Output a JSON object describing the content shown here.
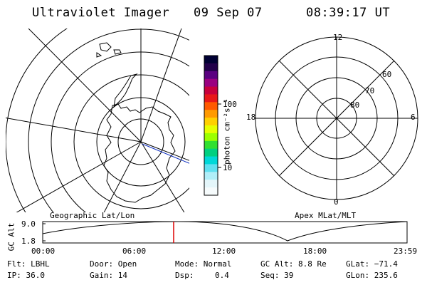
{
  "header": {
    "instrument": "Ultraviolet Imager",
    "date": "09 Sep 07",
    "time": "08:39:17 UT"
  },
  "colorbar": {
    "unit_label": "photon cm⁻²s⁻¹",
    "ticks": [
      "100",
      "10"
    ],
    "colors": [
      "#000033",
      "#22004a",
      "#5a0080",
      "#9a0080",
      "#c8003c",
      "#e81818",
      "#ff5a00",
      "#ff9a00",
      "#ffd000",
      "#e6ff00",
      "#9cff00",
      "#30e030",
      "#00d080",
      "#00d8d8",
      "#60e0f0",
      "#b0eef8",
      "#e4f6fa",
      "#f6fbfc"
    ]
  },
  "left_panel": {
    "caption": "Geographic Lat/Lon"
  },
  "right_panel": {
    "caption": "Apex MLat/MLT",
    "mlt_labels": {
      "top": "12",
      "bottom": "0",
      "left": "18",
      "right": "6"
    },
    "lat_labels": [
      "60",
      "70",
      "80"
    ]
  },
  "timeline": {
    "y_label": "GC Alt",
    "y_ticks": [
      "9.0",
      "1.8"
    ],
    "x_ticks": [
      "00:00",
      "06:00",
      "12:00",
      "18:00",
      "23:59"
    ],
    "marker_time": "08:39:17",
    "marker_color": "#dd0000"
  },
  "footer": {
    "flt": "Flt: LBHL",
    "ip": "IP: 36.0",
    "door": "Door: Open",
    "gain": "Gain: 14",
    "mode": "Mode: Normal",
    "dsp_label": "Dsp:",
    "dsp_value": "0.4",
    "gc_alt": "GC Alt: 8.8 Re",
    "seq": "Seq: 39",
    "glat": "GLat: −71.4",
    "glon": "GLon: 235.6"
  }
}
